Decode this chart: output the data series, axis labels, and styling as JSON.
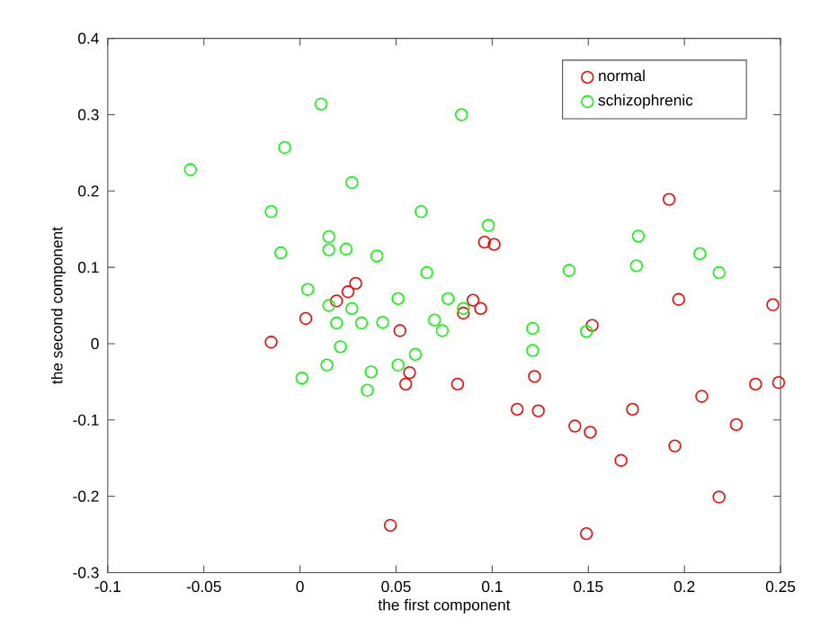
{
  "chart_data": {
    "type": "scatter",
    "xlabel": "the first component",
    "ylabel": "the second component",
    "xlim": [
      -0.1,
      0.25
    ],
    "ylim": [
      -0.3,
      0.4
    ],
    "xticks": [
      -0.1,
      -0.05,
      0,
      0.05,
      0.1,
      0.15,
      0.2,
      0.25
    ],
    "yticks": [
      -0.3,
      -0.2,
      -0.1,
      0,
      0.1,
      0.2,
      0.3,
      0.4
    ],
    "marker": "circle",
    "legend": "top right",
    "grid": false,
    "series": [
      {
        "name": "normal",
        "color": "#ff0000",
        "x": [
          -0.015,
          0.003,
          0.019,
          0.025,
          0.029,
          0.052,
          0.057,
          0.055,
          0.047,
          0.082,
          0.085,
          0.09,
          0.094,
          0.096,
          0.101,
          0.113,
          0.122,
          0.124,
          0.143,
          0.151,
          0.149,
          0.152,
          0.167,
          0.173,
          0.192,
          0.195,
          0.197,
          0.209,
          0.218,
          0.227,
          0.237,
          0.246,
          0.249
        ],
        "values": [
          0.002,
          0.033,
          0.056,
          0.068,
          0.079,
          0.017,
          -0.038,
          -0.053,
          -0.238,
          -0.053,
          0.04,
          0.057,
          0.046,
          0.133,
          0.13,
          -0.086,
          -0.043,
          -0.088,
          -0.108,
          -0.116,
          -0.249,
          0.024,
          -0.153,
          -0.086,
          0.189,
          -0.134,
          0.058,
          -0.069,
          -0.201,
          -0.106,
          -0.053,
          0.051,
          -0.051
        ]
      },
      {
        "name": "schizophrenic",
        "color": "#00ff00",
        "x": [
          -0.057,
          0.011,
          -0.008,
          0.027,
          -0.015,
          0.063,
          -0.01,
          0.015,
          0.015,
          0.024,
          0.04,
          0.066,
          0.004,
          0.051,
          0.077,
          0.015,
          0.027,
          0.019,
          0.032,
          0.043,
          0.07,
          0.074,
          0.021,
          0.014,
          0.001,
          0.037,
          0.035,
          0.051,
          0.06,
          0.084,
          0.098,
          0.085,
          0.14,
          0.175,
          0.176,
          0.208,
          0.218,
          0.121,
          0.121,
          0.149
        ],
        "values": [
          0.228,
          0.314,
          0.257,
          0.211,
          0.173,
          0.173,
          0.119,
          0.14,
          0.123,
          0.124,
          0.115,
          0.093,
          0.071,
          0.059,
          0.059,
          0.05,
          0.046,
          0.027,
          0.027,
          0.028,
          0.031,
          0.017,
          -0.004,
          -0.028,
          -0.045,
          -0.037,
          -0.061,
          -0.028,
          -0.014,
          0.3,
          0.155,
          0.046,
          0.096,
          0.102,
          0.141,
          0.118,
          0.093,
          0.02,
          -0.009,
          0.016
        ]
      }
    ]
  }
}
